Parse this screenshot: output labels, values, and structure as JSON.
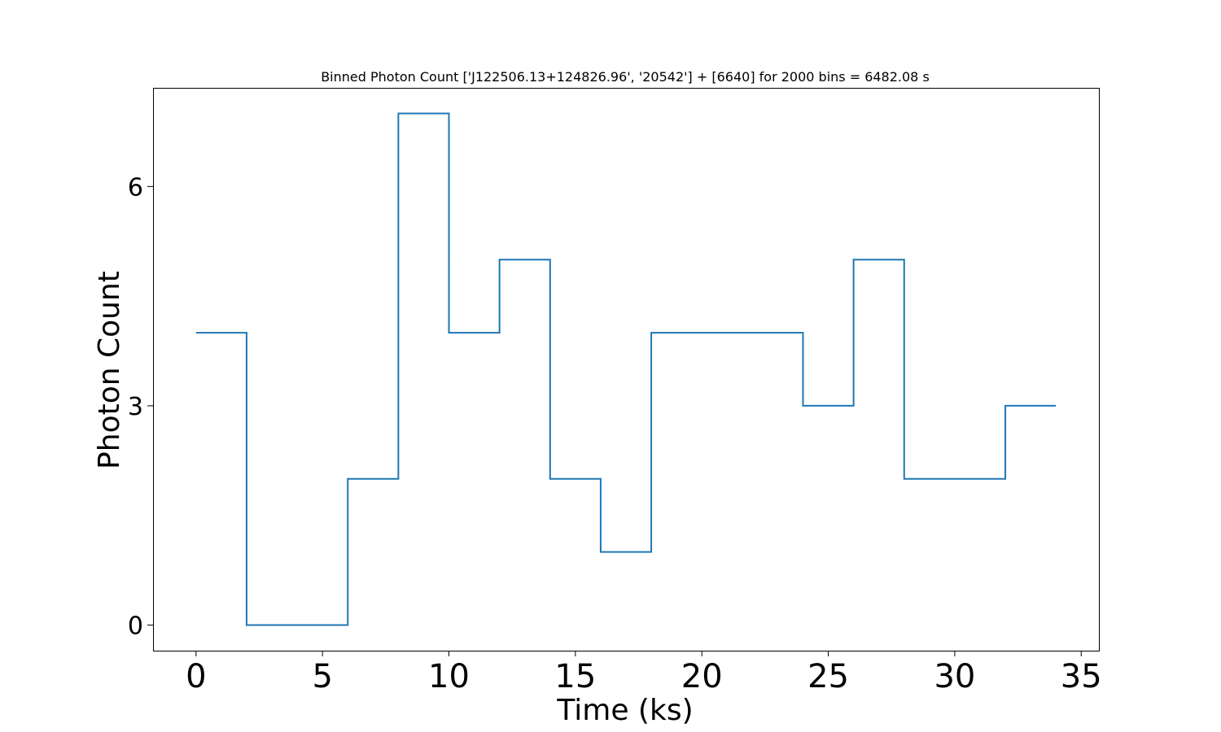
{
  "chart_data": {
    "type": "line",
    "drawstyle": "steps-post",
    "title": "Binned Photon Count ['J122506.13+124826.96', '20542'] + [6640] for 2000 bins = 6482.08 s",
    "xlabel": "Time (ks)",
    "ylabel": "Photon Count",
    "xlim": [
      -1.7,
      35.7
    ],
    "ylim": [
      -0.35,
      7.35
    ],
    "xticks": [
      0,
      5,
      10,
      15,
      20,
      25,
      30,
      35
    ],
    "yticks": [
      0,
      3,
      6
    ],
    "grid": false,
    "series": [
      {
        "color": "#1f77b4",
        "x": [
          0,
          2,
          4,
          6,
          8,
          10,
          12,
          14,
          16,
          18,
          20,
          22,
          24,
          26,
          28,
          30,
          32,
          34
        ],
        "y": [
          4,
          0,
          0,
          2,
          7,
          4,
          5,
          2,
          1,
          4,
          4,
          4,
          3,
          5,
          2,
          2,
          3,
          3
        ]
      }
    ]
  }
}
